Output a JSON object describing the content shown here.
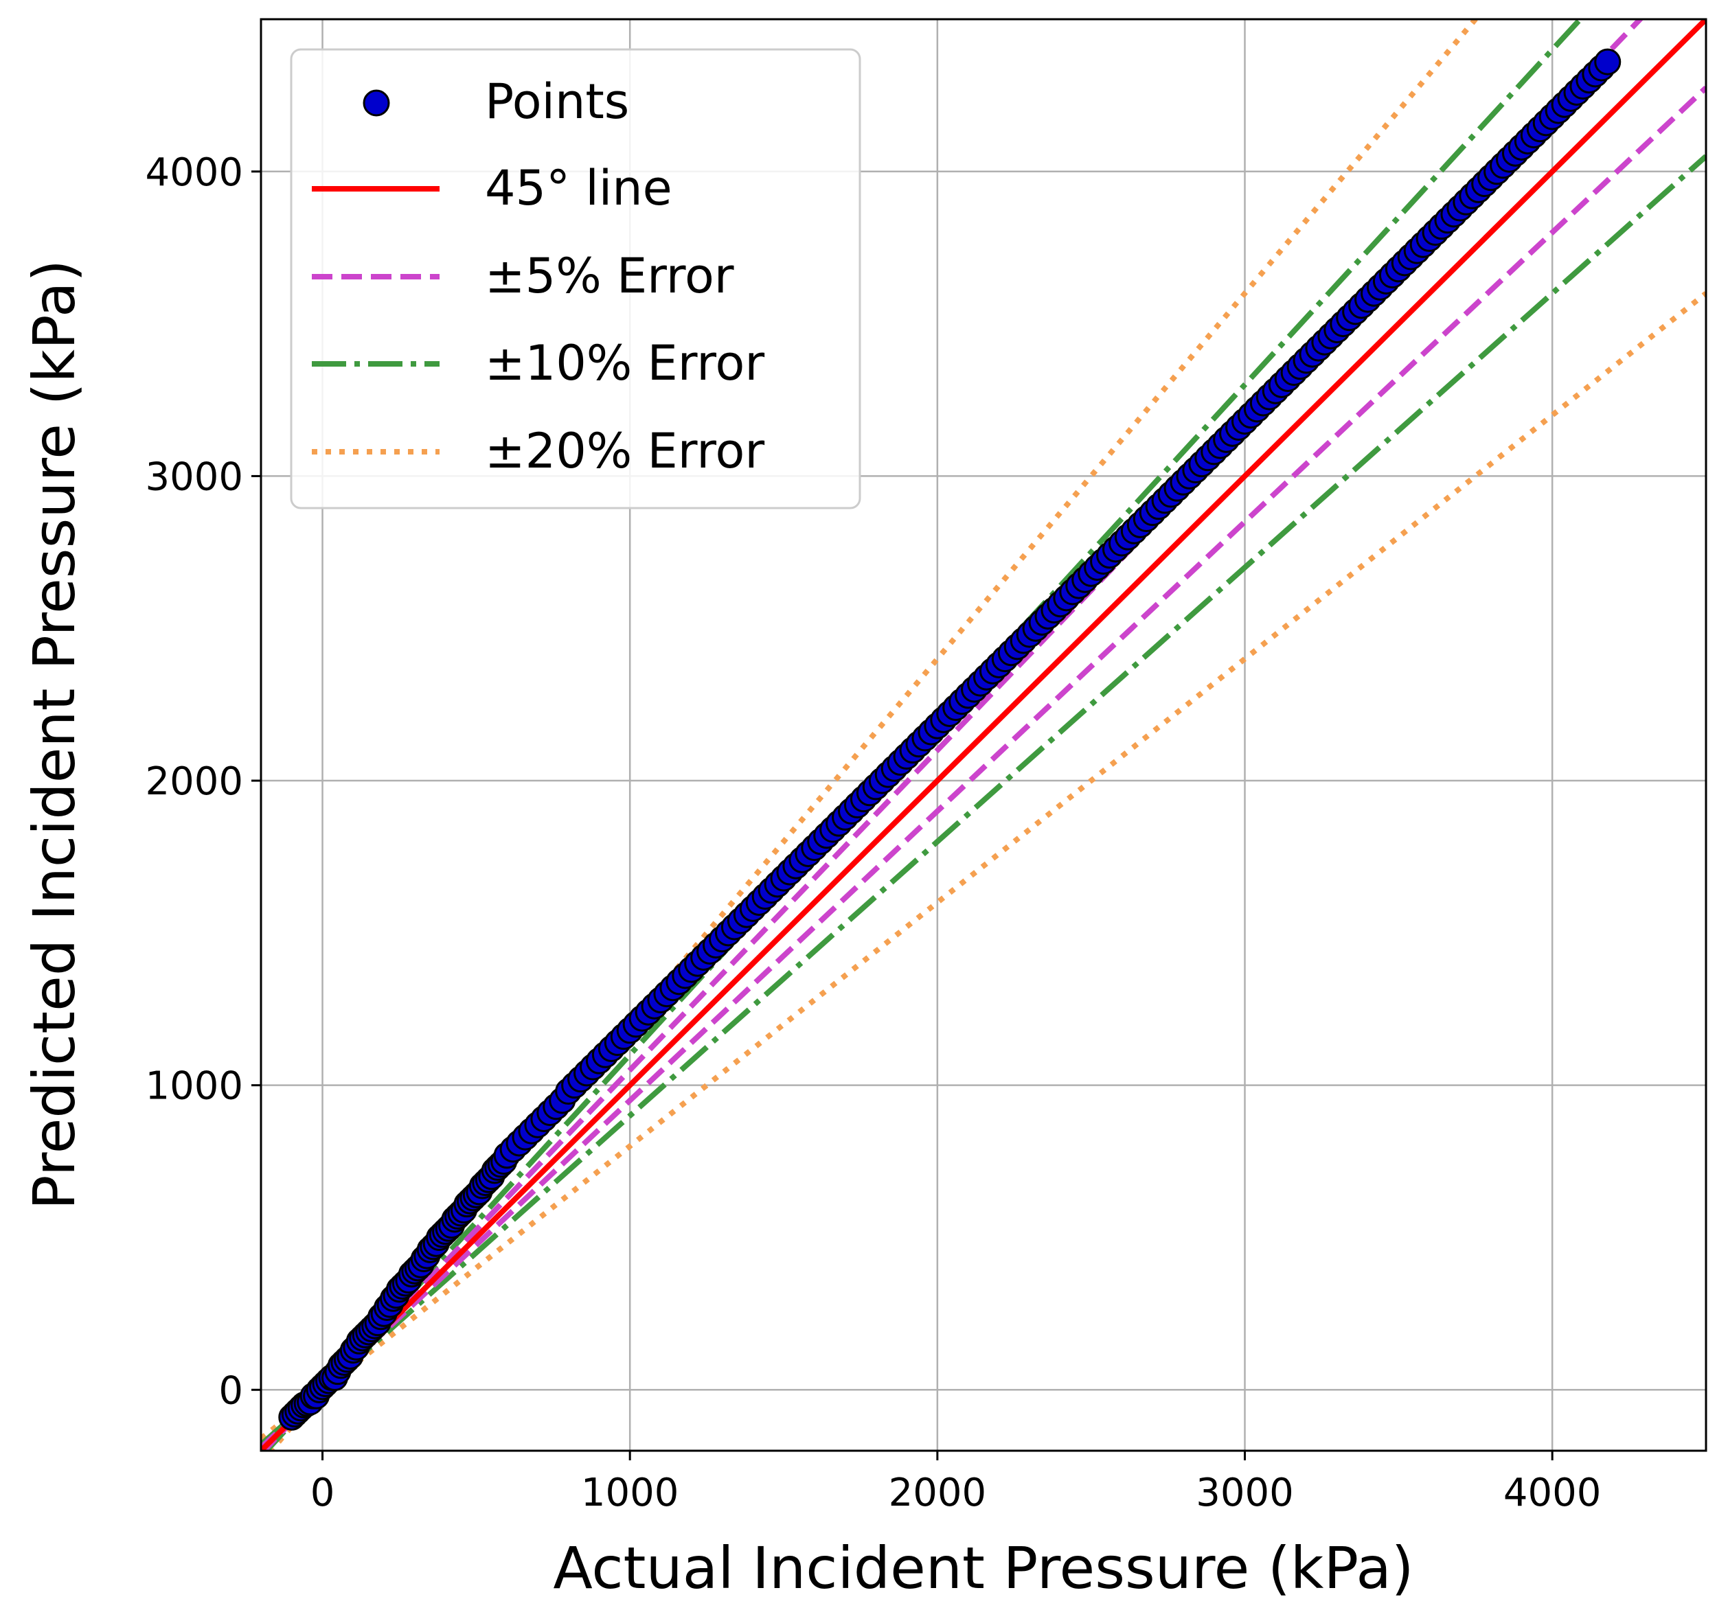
{
  "chart_data": {
    "type": "scatter",
    "xlabel": "Actual Incident Pressure (kPa)",
    "ylabel": "Predicted Incident Pressure (kPa)",
    "xlim": [
      -200,
      4500
    ],
    "ylim": [
      -200,
      4500
    ],
    "x_ticks": [
      0,
      1000,
      2000,
      3000,
      4000
    ],
    "y_ticks": [
      0,
      1000,
      2000,
      3000,
      4000
    ],
    "grid": true,
    "legend_position": "top-left",
    "colors": {
      "points_fill": "#0000cc",
      "points_edge": "#000000",
      "line_45": "#ff0000",
      "err5": "#cc44cc",
      "err10": "#3f9a3f",
      "err20": "#f5a050"
    },
    "reference_lines": [
      {
        "label": "45° line",
        "slopes": [
          1.0
        ],
        "style": "solid"
      },
      {
        "label": "±5% Error",
        "slopes": [
          1.05,
          0.95
        ],
        "style": "dashed"
      },
      {
        "label": "±10% Error",
        "slopes": [
          1.1,
          0.9
        ],
        "style": "dashdot"
      },
      {
        "label": "±20% Error",
        "slopes": [
          1.2,
          0.8
        ],
        "style": "dotted"
      }
    ],
    "series": [
      {
        "name": "Points",
        "points": [
          [
            -100,
            -90
          ],
          [
            -90,
            -80
          ],
          [
            -80,
            -70
          ],
          [
            -70,
            -60
          ],
          [
            -60,
            -50
          ],
          [
            -50,
            -45
          ],
          [
            -40,
            -40
          ],
          [
            -30,
            -20
          ],
          [
            -20,
            -20
          ],
          [
            -10,
            0
          ],
          [
            0,
            10
          ],
          [
            10,
            20
          ],
          [
            20,
            30
          ],
          [
            30,
            40
          ],
          [
            40,
            40
          ],
          [
            50,
            60
          ],
          [
            60,
            80
          ],
          [
            70,
            90
          ],
          [
            80,
            100
          ],
          [
            90,
            110
          ],
          [
            100,
            130
          ],
          [
            110,
            140
          ],
          [
            120,
            160
          ],
          [
            130,
            170
          ],
          [
            140,
            180
          ],
          [
            150,
            190
          ],
          [
            160,
            200
          ],
          [
            170,
            210
          ],
          [
            180,
            220
          ],
          [
            190,
            240
          ],
          [
            200,
            250
          ],
          [
            210,
            270
          ],
          [
            220,
            280
          ],
          [
            230,
            300
          ],
          [
            240,
            310
          ],
          [
            250,
            330
          ],
          [
            260,
            340
          ],
          [
            270,
            350
          ],
          [
            280,
            360
          ],
          [
            290,
            380
          ],
          [
            300,
            390
          ],
          [
            310,
            400
          ],
          [
            320,
            410
          ],
          [
            330,
            430
          ],
          [
            340,
            440
          ],
          [
            350,
            460
          ],
          [
            360,
            470
          ],
          [
            370,
            480
          ],
          [
            380,
            500
          ],
          [
            390,
            510
          ],
          [
            400,
            520
          ],
          [
            410,
            530
          ],
          [
            420,
            540
          ],
          [
            430,
            560
          ],
          [
            440,
            570
          ],
          [
            450,
            580
          ],
          [
            460,
            590
          ],
          [
            470,
            610
          ],
          [
            480,
            620
          ],
          [
            490,
            630
          ],
          [
            500,
            640
          ],
          [
            510,
            650
          ],
          [
            520,
            670
          ],
          [
            530,
            680
          ],
          [
            540,
            690
          ],
          [
            550,
            700
          ],
          [
            560,
            720
          ],
          [
            570,
            730
          ],
          [
            580,
            740
          ],
          [
            590,
            750
          ],
          [
            600,
            770
          ],
          [
            620,
            790
          ],
          [
            640,
            810
          ],
          [
            660,
            830
          ],
          [
            680,
            850
          ],
          [
            700,
            870
          ],
          [
            720,
            890
          ],
          [
            740,
            910
          ],
          [
            760,
            930
          ],
          [
            780,
            950
          ],
          [
            800,
            980
          ],
          [
            820,
            1000
          ],
          [
            840,
            1020
          ],
          [
            860,
            1040
          ],
          [
            880,
            1060
          ],
          [
            900,
            1080
          ],
          [
            920,
            1100
          ],
          [
            940,
            1120
          ],
          [
            960,
            1140
          ],
          [
            980,
            1160
          ],
          [
            1000,
            1180
          ],
          [
            1020,
            1200
          ],
          [
            1040,
            1220
          ],
          [
            1060,
            1240
          ],
          [
            1080,
            1260
          ],
          [
            1100,
            1280
          ],
          [
            1120,
            1300
          ],
          [
            1140,
            1320
          ],
          [
            1160,
            1340
          ],
          [
            1180,
            1360
          ],
          [
            1200,
            1380
          ],
          [
            1220,
            1400
          ],
          [
            1240,
            1420
          ],
          [
            1260,
            1440
          ],
          [
            1280,
            1460
          ],
          [
            1300,
            1480
          ],
          [
            1320,
            1500
          ],
          [
            1340,
            1520
          ],
          [
            1360,
            1540
          ],
          [
            1380,
            1560
          ],
          [
            1400,
            1580
          ],
          [
            1420,
            1600
          ],
          [
            1440,
            1620
          ],
          [
            1460,
            1640
          ],
          [
            1480,
            1660
          ],
          [
            1500,
            1680
          ],
          [
            1520,
            1700
          ],
          [
            1540,
            1720
          ],
          [
            1560,
            1740
          ],
          [
            1580,
            1760
          ],
          [
            1600,
            1780
          ],
          [
            1620,
            1800
          ],
          [
            1640,
            1820
          ],
          [
            1660,
            1840
          ],
          [
            1680,
            1860
          ],
          [
            1700,
            1880
          ],
          [
            1720,
            1900
          ],
          [
            1740,
            1920
          ],
          [
            1760,
            1940
          ],
          [
            1780,
            1960
          ],
          [
            1800,
            1980
          ],
          [
            1820,
            2000
          ],
          [
            1840,
            2020
          ],
          [
            1860,
            2040
          ],
          [
            1880,
            2060
          ],
          [
            1900,
            2080
          ],
          [
            1920,
            2100
          ],
          [
            1940,
            2120
          ],
          [
            1960,
            2140
          ],
          [
            1980,
            2160
          ],
          [
            2000,
            2180
          ],
          [
            2020,
            2200
          ],
          [
            2040,
            2220
          ],
          [
            2060,
            2240
          ],
          [
            2080,
            2260
          ],
          [
            2100,
            2280
          ],
          [
            2120,
            2300
          ],
          [
            2140,
            2320
          ],
          [
            2160,
            2340
          ],
          [
            2180,
            2360
          ],
          [
            2200,
            2380
          ],
          [
            2220,
            2400
          ],
          [
            2240,
            2420
          ],
          [
            2260,
            2440
          ],
          [
            2280,
            2460
          ],
          [
            2300,
            2480
          ],
          [
            2320,
            2500
          ],
          [
            2340,
            2520
          ],
          [
            2360,
            2540
          ],
          [
            2380,
            2560
          ],
          [
            2400,
            2580
          ],
          [
            2420,
            2600
          ],
          [
            2440,
            2620
          ],
          [
            2460,
            2640
          ],
          [
            2480,
            2660
          ],
          [
            2500,
            2680
          ],
          [
            2520,
            2700
          ],
          [
            2540,
            2720
          ],
          [
            2560,
            2740
          ],
          [
            2580,
            2760
          ],
          [
            2600,
            2780
          ],
          [
            2620,
            2800
          ],
          [
            2640,
            2820
          ],
          [
            2660,
            2840
          ],
          [
            2680,
            2860
          ],
          [
            2700,
            2880
          ],
          [
            2720,
            2900
          ],
          [
            2740,
            2920
          ],
          [
            2760,
            2940
          ],
          [
            2780,
            2960
          ],
          [
            2800,
            2980
          ],
          [
            2820,
            3000
          ],
          [
            2840,
            3020
          ],
          [
            2860,
            3040
          ],
          [
            2880,
            3060
          ],
          [
            2900,
            3080
          ],
          [
            2920,
            3100
          ],
          [
            2940,
            3120
          ],
          [
            2960,
            3140
          ],
          [
            2980,
            3160
          ],
          [
            3000,
            3180
          ],
          [
            3020,
            3200
          ],
          [
            3040,
            3220
          ],
          [
            3060,
            3240
          ],
          [
            3080,
            3260
          ],
          [
            3100,
            3280
          ],
          [
            3120,
            3300
          ],
          [
            3140,
            3320
          ],
          [
            3160,
            3340
          ],
          [
            3180,
            3360
          ],
          [
            3200,
            3380
          ],
          [
            3220,
            3400
          ],
          [
            3240,
            3420
          ],
          [
            3260,
            3440
          ],
          [
            3280,
            3460
          ],
          [
            3300,
            3480
          ],
          [
            3320,
            3500
          ],
          [
            3340,
            3520
          ],
          [
            3360,
            3540
          ],
          [
            3380,
            3560
          ],
          [
            3400,
            3580
          ],
          [
            3420,
            3600
          ],
          [
            3440,
            3620
          ],
          [
            3460,
            3640
          ],
          [
            3480,
            3660
          ],
          [
            3500,
            3680
          ],
          [
            3520,
            3700
          ],
          [
            3540,
            3720
          ],
          [
            3560,
            3740
          ],
          [
            3580,
            3760
          ],
          [
            3600,
            3780
          ],
          [
            3620,
            3800
          ],
          [
            3640,
            3820
          ],
          [
            3660,
            3840
          ],
          [
            3680,
            3860
          ],
          [
            3700,
            3880
          ],
          [
            3720,
            3900
          ],
          [
            3740,
            3920
          ],
          [
            3760,
            3940
          ],
          [
            3780,
            3960
          ],
          [
            3800,
            3980
          ],
          [
            3820,
            4000
          ],
          [
            3840,
            4020
          ],
          [
            3860,
            4040
          ],
          [
            3880,
            4060
          ],
          [
            3900,
            4080
          ],
          [
            3920,
            4100
          ],
          [
            3940,
            4120
          ],
          [
            3960,
            4140
          ],
          [
            3980,
            4160
          ],
          [
            4000,
            4180
          ],
          [
            4020,
            4200
          ],
          [
            4040,
            4220
          ],
          [
            4060,
            4240
          ],
          [
            4080,
            4260
          ],
          [
            4100,
            4280
          ],
          [
            4120,
            4300
          ],
          [
            4140,
            4320
          ],
          [
            4160,
            4340
          ],
          [
            4180,
            4360
          ]
        ]
      }
    ]
  },
  "legend": {
    "points": "Points",
    "line45": "45° line",
    "err5": "±5% Error",
    "err10": "±10% Error",
    "err20": "±20% Error"
  }
}
